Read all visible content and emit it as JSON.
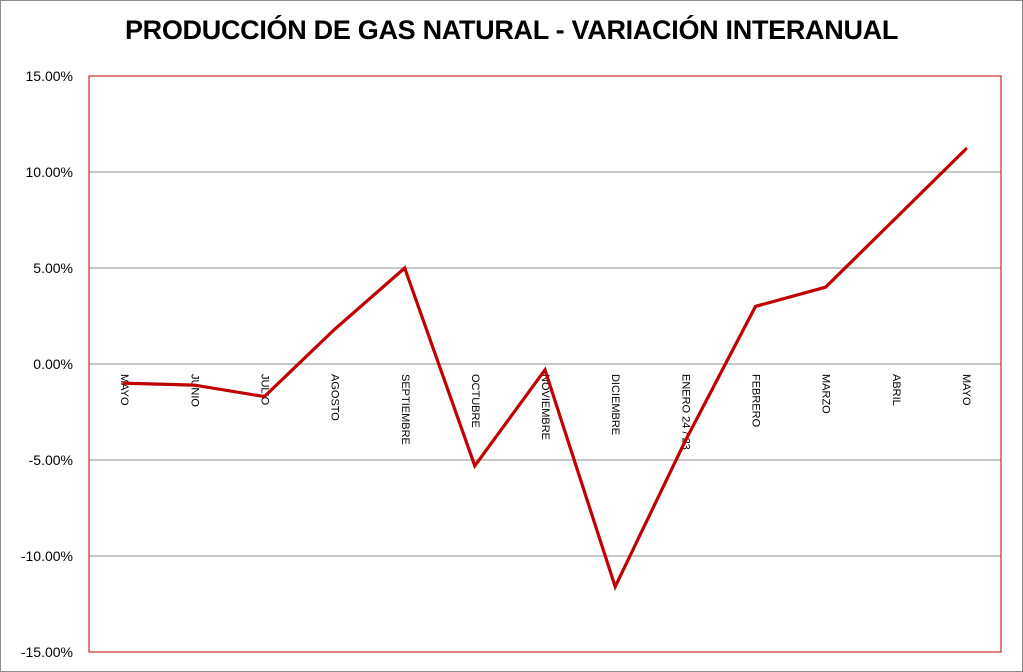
{
  "chart_data": {
    "type": "line",
    "title": "PRODUCCIÓN DE GAS NATURAL - VARIACIÓN INTERANUAL",
    "xlabel": "",
    "ylabel": "",
    "categories": [
      "MAYO",
      "JUNIO",
      "JULIO",
      "AGOSTO",
      "SEPTIEMBRE",
      "OCTUBRE",
      "NOVIEMBRE",
      "DICIEMBRE",
      "ENERO 24 / 23",
      "FEBRERO",
      "MARZO",
      "ABRIL",
      "MAYO"
    ],
    "series": [
      {
        "values": [
          -1.0,
          -1.1,
          -1.7,
          1.8,
          5.0,
          -5.3,
          -0.3,
          -11.6,
          -4.0,
          3.0,
          4.0,
          7.6,
          11.2
        ],
        "color": "#c00000"
      }
    ],
    "ylim": [
      -15,
      15
    ],
    "ytick_values": [
      -15,
      -10,
      -5,
      0,
      5,
      10,
      15
    ],
    "ytick_labels": [
      "-15.00%",
      "-10.00%",
      "-5.00%",
      "0.00%",
      "5.00%",
      "10.00%",
      "15.00%"
    ],
    "grid": true,
    "legend": "none",
    "plot_border_color": "#c00000",
    "gridline_color": "#8c8c8c"
  }
}
